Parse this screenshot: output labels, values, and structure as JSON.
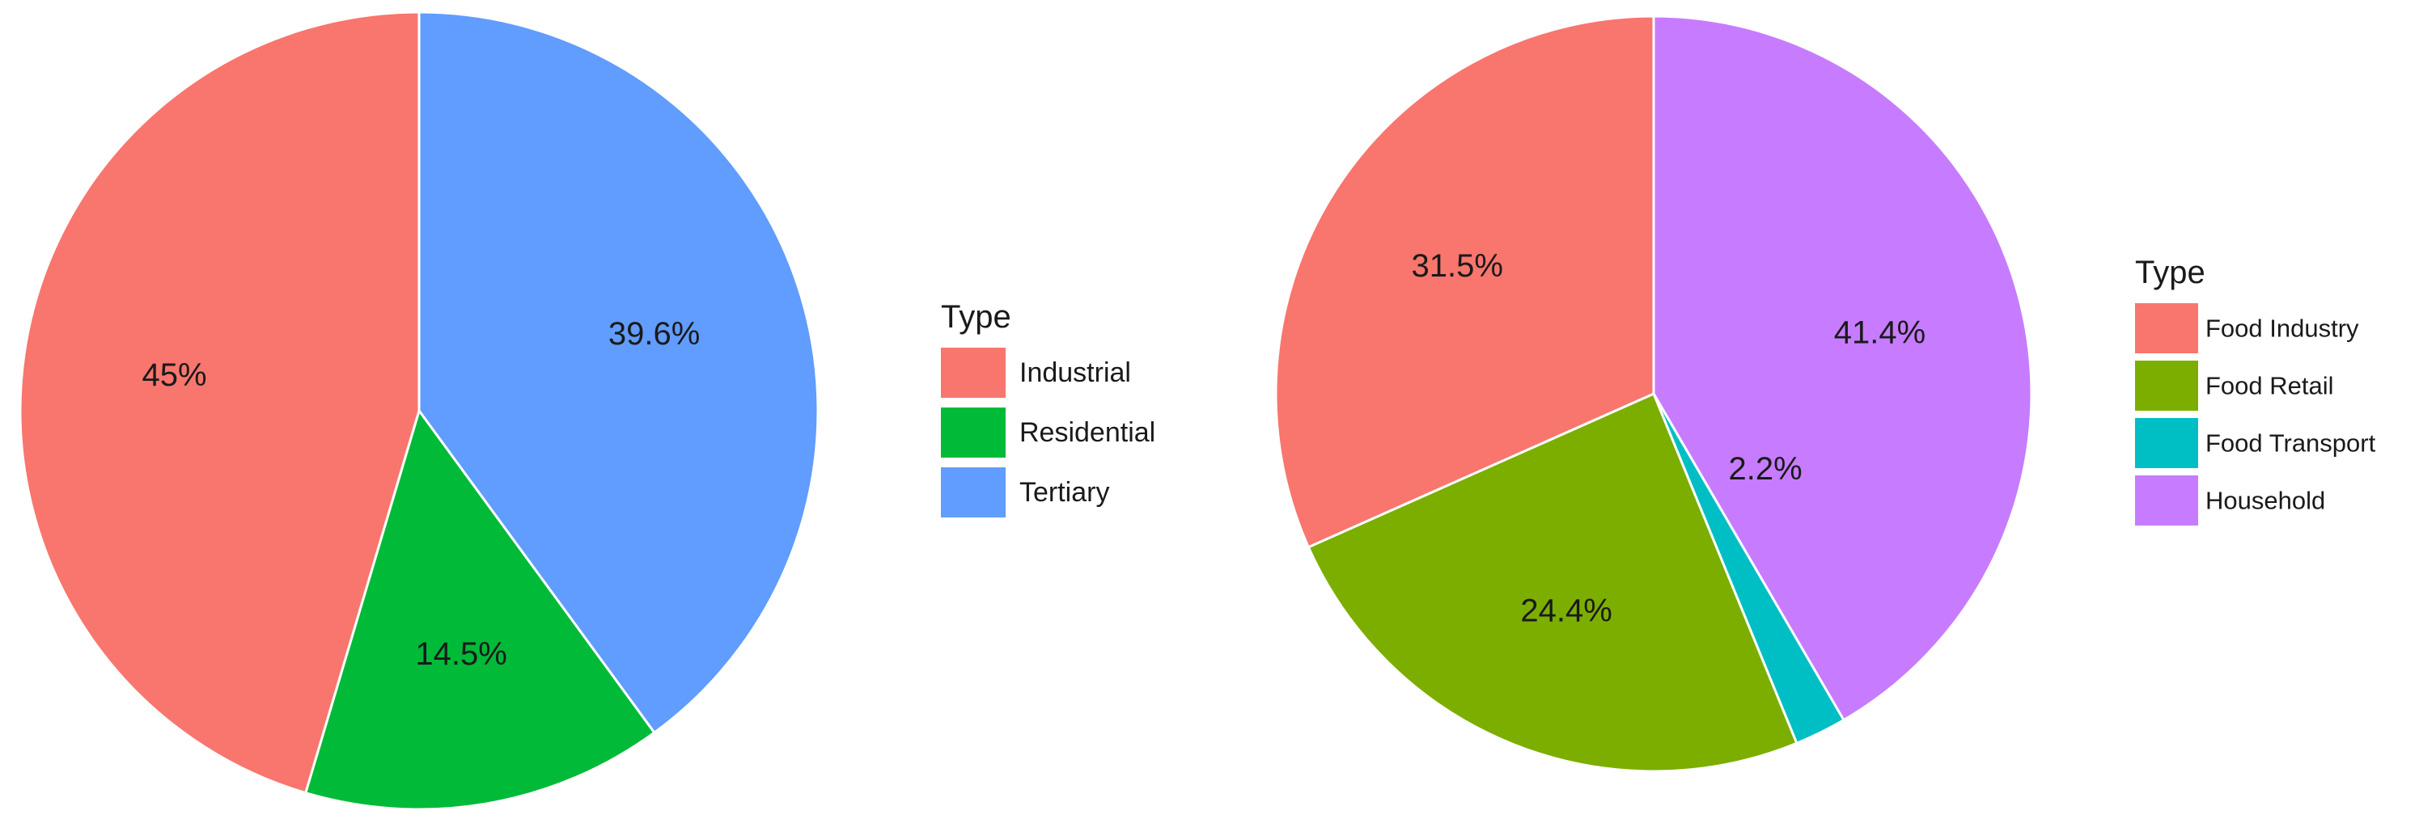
{
  "chart_data": [
    {
      "type": "pie",
      "legend_title": "Type",
      "legend_position": "right",
      "start": "top",
      "direction": "clockwise",
      "slices": [
        {
          "name": "Tertiary",
          "value": 39.6,
          "label": "39.6%",
          "color": "#619CFF"
        },
        {
          "name": "Residential",
          "value": 14.5,
          "label": "14.5%",
          "color": "#00BA38"
        },
        {
          "name": "Industrial",
          "value": 45,
          "label": "45%",
          "color": "#F8766D"
        }
      ],
      "legend": [
        {
          "name": "Industrial",
          "color": "#F8766D"
        },
        {
          "name": "Residential",
          "color": "#00BA38"
        },
        {
          "name": "Tertiary",
          "color": "#619CFF"
        }
      ]
    },
    {
      "type": "pie",
      "legend_title": "Type",
      "legend_position": "right",
      "start": "top",
      "direction": "clockwise",
      "slices": [
        {
          "name": "Household",
          "value": 41.4,
          "label": "41.4%",
          "color": "#C77CFF"
        },
        {
          "name": "Food Transport",
          "value": 2.2,
          "label": "2.2%",
          "color": "#00BFC4"
        },
        {
          "name": "Food Retail",
          "value": 24.4,
          "label": "24.4%",
          "color": "#7CAE00"
        },
        {
          "name": "Food Industry",
          "value": 31.5,
          "label": "31.5%",
          "color": "#F8766D"
        }
      ],
      "legend": [
        {
          "name": "Food Industry",
          "color": "#F8766D"
        },
        {
          "name": "Food Retail",
          "color": "#7CAE00"
        },
        {
          "name": "Food Transport",
          "color": "#00BFC4"
        },
        {
          "name": "Household",
          "color": "#C77CFF"
        }
      ]
    }
  ]
}
